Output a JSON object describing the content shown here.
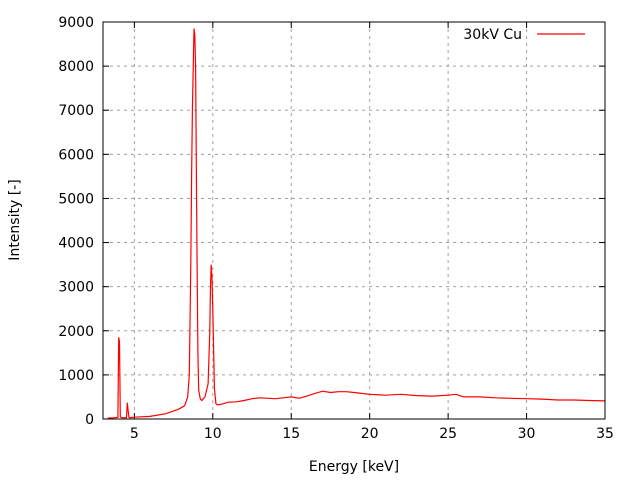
{
  "chart_data": {
    "type": "line",
    "title": "",
    "xlabel": "Energy [keV]",
    "ylabel": "Intensity [-]",
    "xlim": [
      3,
      35
    ],
    "ylim": [
      0,
      9000
    ],
    "xticks": [
      5,
      10,
      15,
      20,
      25,
      30,
      35
    ],
    "yticks": [
      0,
      1000,
      2000,
      3000,
      4000,
      5000,
      6000,
      7000,
      8000,
      9000
    ],
    "grid": true,
    "legend_position": "top-right",
    "series": [
      {
        "name": "30kV Cu",
        "color": "#ff0000",
        "x": [
          3.3,
          3.8,
          3.95,
          4.0,
          4.05,
          4.1,
          4.15,
          4.2,
          4.5,
          4.55,
          4.6,
          4.65,
          4.7,
          5.0,
          6.0,
          7.0,
          7.8,
          8.2,
          8.4,
          8.5,
          8.6,
          8.65,
          8.7,
          8.8,
          8.85,
          8.9,
          8.95,
          9.0,
          9.05,
          9.1,
          9.2,
          9.3,
          9.5,
          9.7,
          9.8,
          9.85,
          9.9,
          9.95,
          10.0,
          10.05,
          10.1,
          10.2,
          10.3,
          10.5,
          11,
          11.5,
          12,
          12.5,
          13,
          14,
          14.5,
          15,
          15.5,
          16,
          16.5,
          17,
          17.5,
          18,
          18.5,
          19,
          19.5,
          20,
          21,
          22,
          23,
          24,
          25,
          25.5,
          26,
          27,
          28,
          29,
          30,
          31,
          32,
          33,
          34,
          35
        ],
        "y": [
          20,
          30,
          40,
          1850,
          1750,
          50,
          40,
          30,
          30,
          370,
          200,
          40,
          30,
          40,
          60,
          120,
          220,
          300,
          500,
          1000,
          3500,
          5500,
          7000,
          8850,
          8700,
          8000,
          5800,
          3500,
          1500,
          650,
          450,
          420,
          500,
          800,
          1900,
          3000,
          3500,
          3200,
          2500,
          1600,
          700,
          350,
          320,
          330,
          380,
          390,
          420,
          460,
          480,
          460,
          480,
          500,
          470,
          520,
          580,
          630,
          600,
          620,
          620,
          600,
          580,
          560,
          540,
          560,
          530,
          520,
          540,
          560,
          500,
          500,
          480,
          470,
          460,
          450,
          430,
          430,
          420,
          410
        ]
      }
    ]
  }
}
